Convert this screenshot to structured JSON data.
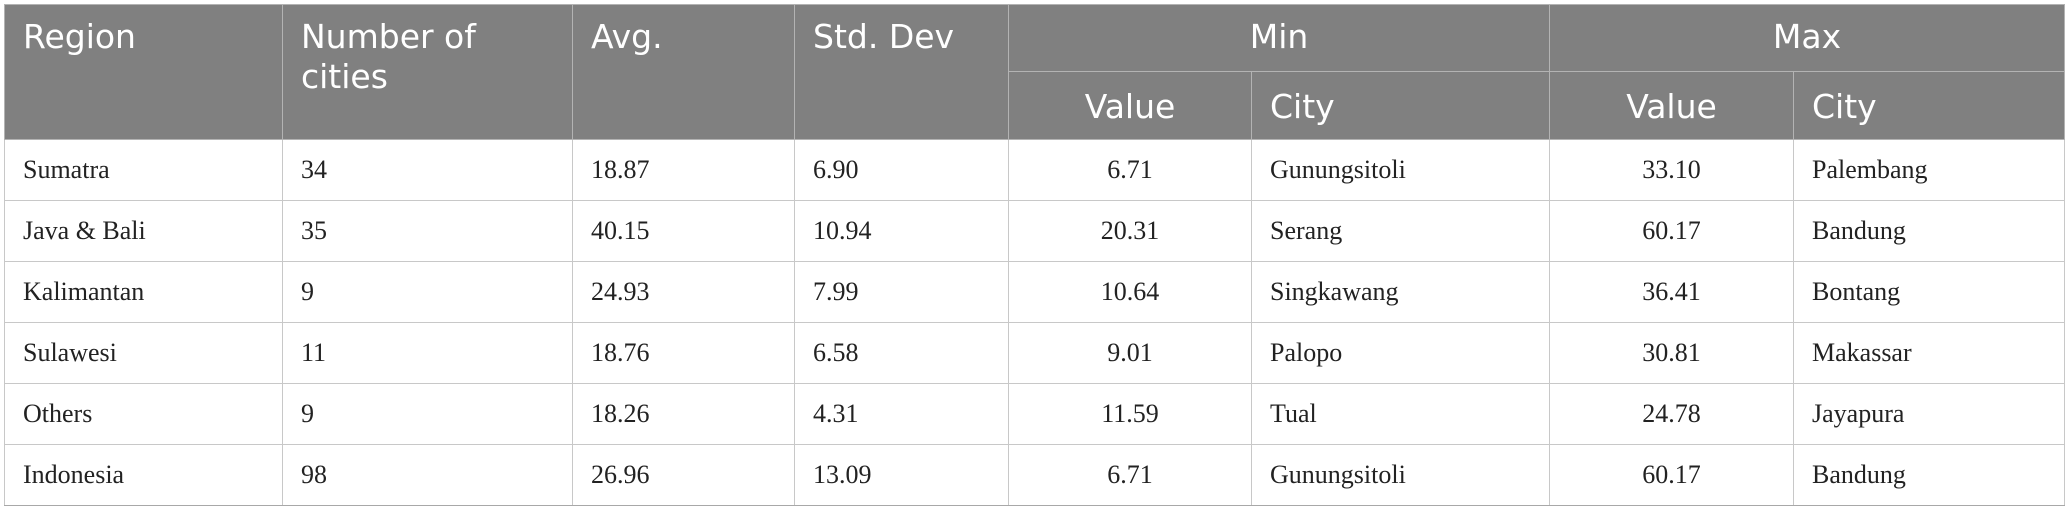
{
  "table": {
    "headers": {
      "region": "Region",
      "cities": "Number of cities",
      "avg": "Avg.",
      "std": "Std. Dev",
      "min": "Min",
      "max": "Max",
      "min_value": "Value",
      "min_city": "City",
      "max_value": "Value",
      "max_city": "City"
    },
    "rows": [
      {
        "region": "Sumatra",
        "cities": "34",
        "avg": "18.87",
        "std": "6.90",
        "min_value": "6.71",
        "min_city": "Gunungsitoli",
        "max_value": "33.10",
        "max_city": "Palembang"
      },
      {
        "region": "Java & Bali",
        "cities": "35",
        "avg": "40.15",
        "std": "10.94",
        "min_value": "20.31",
        "min_city": "Serang",
        "max_value": "60.17",
        "max_city": "Bandung"
      },
      {
        "region": "Kalimantan",
        "cities": "9",
        "avg": "24.93",
        "std": "7.99",
        "min_value": "10.64",
        "min_city": "Singkawang",
        "max_value": "36.41",
        "max_city": "Bontang"
      },
      {
        "region": "Sulawesi",
        "cities": "11",
        "avg": "18.76",
        "std": "6.58",
        "min_value": "9.01",
        "min_city": "Palopo",
        "max_value": "30.81",
        "max_city": "Makassar"
      },
      {
        "region": "Others",
        "cities": "9",
        "avg": "18.26",
        "std": "4.31",
        "min_value": "11.59",
        "min_city": "Tual",
        "max_value": "24.78",
        "max_city": "Jayapura"
      },
      {
        "region": "Indonesia",
        "cities": "98",
        "avg": "26.96",
        "std": "13.09",
        "min_value": "6.71",
        "min_city": "Gunungsitoli",
        "max_value": "60.17",
        "max_city": "Bandung"
      }
    ]
  }
}
